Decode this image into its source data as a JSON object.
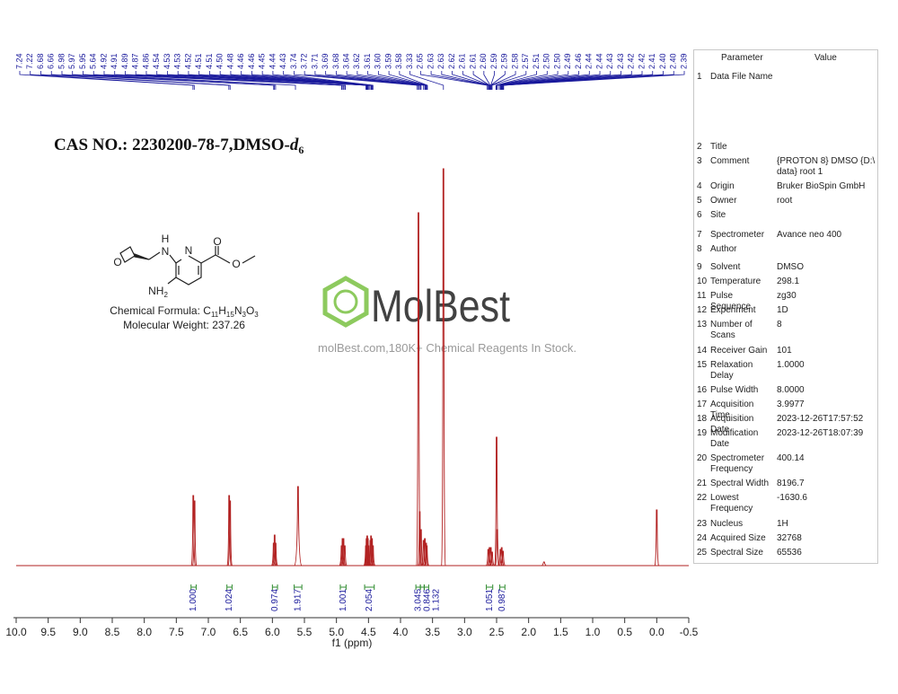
{
  "chart_data": {
    "type": "spectrum",
    "xlabel": "f1 (ppm)",
    "xlim": [
      10,
      -0.5
    ],
    "xticks": [
      {
        "value": 10,
        "label": "10.0"
      },
      9.5,
      {
        "value": 9,
        "label": "9.0"
      },
      8.5,
      {
        "value": 8,
        "label": "8.0"
      },
      7.5,
      {
        "value": 7,
        "label": "7.0"
      },
      6.5,
      {
        "value": 6,
        "label": "6.0"
      },
      5.5,
      {
        "value": 5,
        "label": "5.0"
      },
      4.5,
      {
        "value": 4,
        "label": "4.0"
      },
      3.5,
      {
        "value": 3,
        "label": "3.0"
      },
      2.5,
      {
        "value": 2,
        "label": "2.0"
      },
      1.5,
      {
        "value": 1,
        "label": "1.0"
      },
      0.5,
      {
        "value": 0,
        "label": "0.0"
      },
      -0.5
    ],
    "ylim": [
      0,
      450
    ],
    "color": "#b22222",
    "x": [
      7.235,
      7.215,
      6.675,
      6.66,
      5.98,
      5.965,
      5.95,
      5.6,
      4.92,
      4.905,
      4.89,
      4.87,
      4.54,
      4.53,
      4.52,
      4.51,
      4.5,
      4.47,
      4.46,
      4.445,
      4.43,
      3.72,
      3.7,
      3.68,
      3.64,
      3.62,
      3.6,
      3.59,
      3.33,
      2.63,
      2.61,
      2.59,
      2.57,
      2.5,
      2.49,
      2.44,
      2.42,
      2.4,
      1.76,
      0
    ],
    "values": [
      78,
      72,
      78,
      72,
      25,
      34,
      25,
      88,
      22,
      30,
      30,
      22,
      22,
      30,
      33,
      30,
      22,
      28,
      33,
      30,
      22,
      393,
      60,
      40,
      28,
      30,
      25,
      22,
      442,
      18,
      20,
      20,
      15,
      143,
      40,
      18,
      20,
      16,
      4,
      62
    ],
    "peak_labels": [
      7.24,
      7.22,
      6.68,
      6.66,
      5.98,
      5.97,
      5.95,
      5.64,
      4.92,
      4.91,
      4.89,
      4.87,
      4.86,
      4.54,
      4.53,
      4.53,
      4.52,
      4.51,
      4.51,
      {
        "value": 4.5,
        "label": "4.50"
      },
      4.48,
      4.46,
      4.46,
      4.45,
      4.44,
      4.43,
      3.74,
      3.72,
      3.71,
      3.69,
      3.68,
      3.64,
      3.62,
      3.61,
      {
        "value": 3.6,
        "label": "3.60"
      },
      3.59,
      3.58,
      3.33,
      2.65,
      2.63,
      2.63,
      2.62,
      2.61,
      2.61,
      {
        "value": 2.6,
        "label": "2.60"
      },
      2.59,
      2.59,
      2.58,
      2.57,
      2.51,
      {
        "value": 2.5,
        "label": "2.50"
      },
      {
        "value": 2.5,
        "label": "2.50"
      },
      2.49,
      2.46,
      2.44,
      2.44,
      2.43,
      2.43,
      2.42,
      2.42,
      2.41,
      {
        "value": 2.4,
        "label": "2.40"
      },
      {
        "value": 2.4,
        "label": "2.40"
      },
      2.39
    ],
    "integrals": [
      {
        "label": "1.000",
        "from": 7.27,
        "to": 7.19
      },
      {
        "label": "1.024",
        "from": 6.71,
        "to": 6.63
      },
      {
        "label": "0.974",
        "from": 6.0,
        "to": 5.92
      },
      {
        "label": "1.917",
        "from": 5.66,
        "to": 5.54
      },
      {
        "label": "1.001",
        "from": 4.94,
        "to": 4.85
      },
      {
        "label": "2.054",
        "from": 4.56,
        "to": 4.41
      },
      {
        "label": "3.045",
        "from": 3.76,
        "to": 3.69
      },
      {
        "label": "0.846",
        "from": 3.69,
        "to": 3.63
      },
      {
        "label": "1.132",
        "from": 3.63,
        "to": 3.56
      },
      {
        "label": "1.051",
        "from": 2.66,
        "to": 2.56
      },
      {
        "label": "0.987",
        "from": 2.45,
        "to": 2.37
      }
    ]
  },
  "header": {
    "title": "CAS NO.: 2230200-78-7,DMSO-",
    "title_italic": "d",
    "title_sub": "6"
  },
  "compound": {
    "formula_label": "Chemical Formula: C",
    "formula": [
      "11",
      "H",
      "15",
      "N",
      "3",
      "O",
      "3"
    ],
    "weight": "Molecular Weight: 237.26",
    "atoms": [
      "N",
      "N",
      "H",
      "NH",
      "2",
      "O",
      "O",
      "O"
    ]
  },
  "watermark": {
    "brand": "MolBest",
    "tagline": "molBest.com,180K+ Chemical Reagents In Stock."
  },
  "table": {
    "header": [
      "Parameter",
      "Value"
    ],
    "rows": [
      {
        "no": "1",
        "name": "Data File Name"
      },
      {
        "no": "2",
        "name": "Title"
      },
      {
        "no": "3",
        "name": "Comment",
        "value": "{PROTON 8} DMSO {D:\\ data} root 1"
      },
      {
        "no": "4",
        "name": "Origin",
        "value": "Bruker BioSpin GmbH"
      },
      {
        "no": "5",
        "name": "Owner",
        "value": "root"
      },
      {
        "no": "6",
        "name": "Site"
      },
      {
        "no": "7",
        "name": "Spectrometer",
        "value": "Avance neo 400"
      },
      {
        "no": "8",
        "name": "Author"
      },
      {
        "no": "9",
        "name": "Solvent",
        "value": "DMSO"
      },
      {
        "no": "10",
        "name": "Temperature",
        "value": "298.1"
      },
      {
        "no": "11",
        "name": "Pulse Sequence",
        "value": "zg30"
      },
      {
        "no": "12",
        "name": "Experiment",
        "value": "1D"
      },
      {
        "no": "13",
        "name": "Number of Scans",
        "value": "8"
      },
      {
        "no": "14",
        "name": "Receiver Gain",
        "value": "101"
      },
      {
        "no": "15",
        "name": "Relaxation Delay",
        "value": "1.0000"
      },
      {
        "no": "16",
        "name": "Pulse Width",
        "value": "8.0000"
      },
      {
        "no": "17",
        "name": "Acquisition Time",
        "value": "3.9977"
      },
      {
        "no": "18",
        "name": "Acquisition Date",
        "value": "2023-12-26T17:57:52"
      },
      {
        "no": "19",
        "name": "Modification Date",
        "value": "2023-12-26T18:07:39"
      },
      {
        "no": "20",
        "name": "Spectrometer Frequency",
        "value": "400.14"
      },
      {
        "no": "21",
        "name": "Spectral Width",
        "value": "8196.7"
      },
      {
        "no": "22",
        "name": "Lowest Frequency",
        "value": "-1630.6"
      },
      {
        "no": "23",
        "name": "Nucleus",
        "value": "1H"
      },
      {
        "no": "24",
        "name": "Acquired Size",
        "value": "32768"
      },
      {
        "no": "25",
        "name": "Spectral Size",
        "value": "65536"
      }
    ]
  }
}
